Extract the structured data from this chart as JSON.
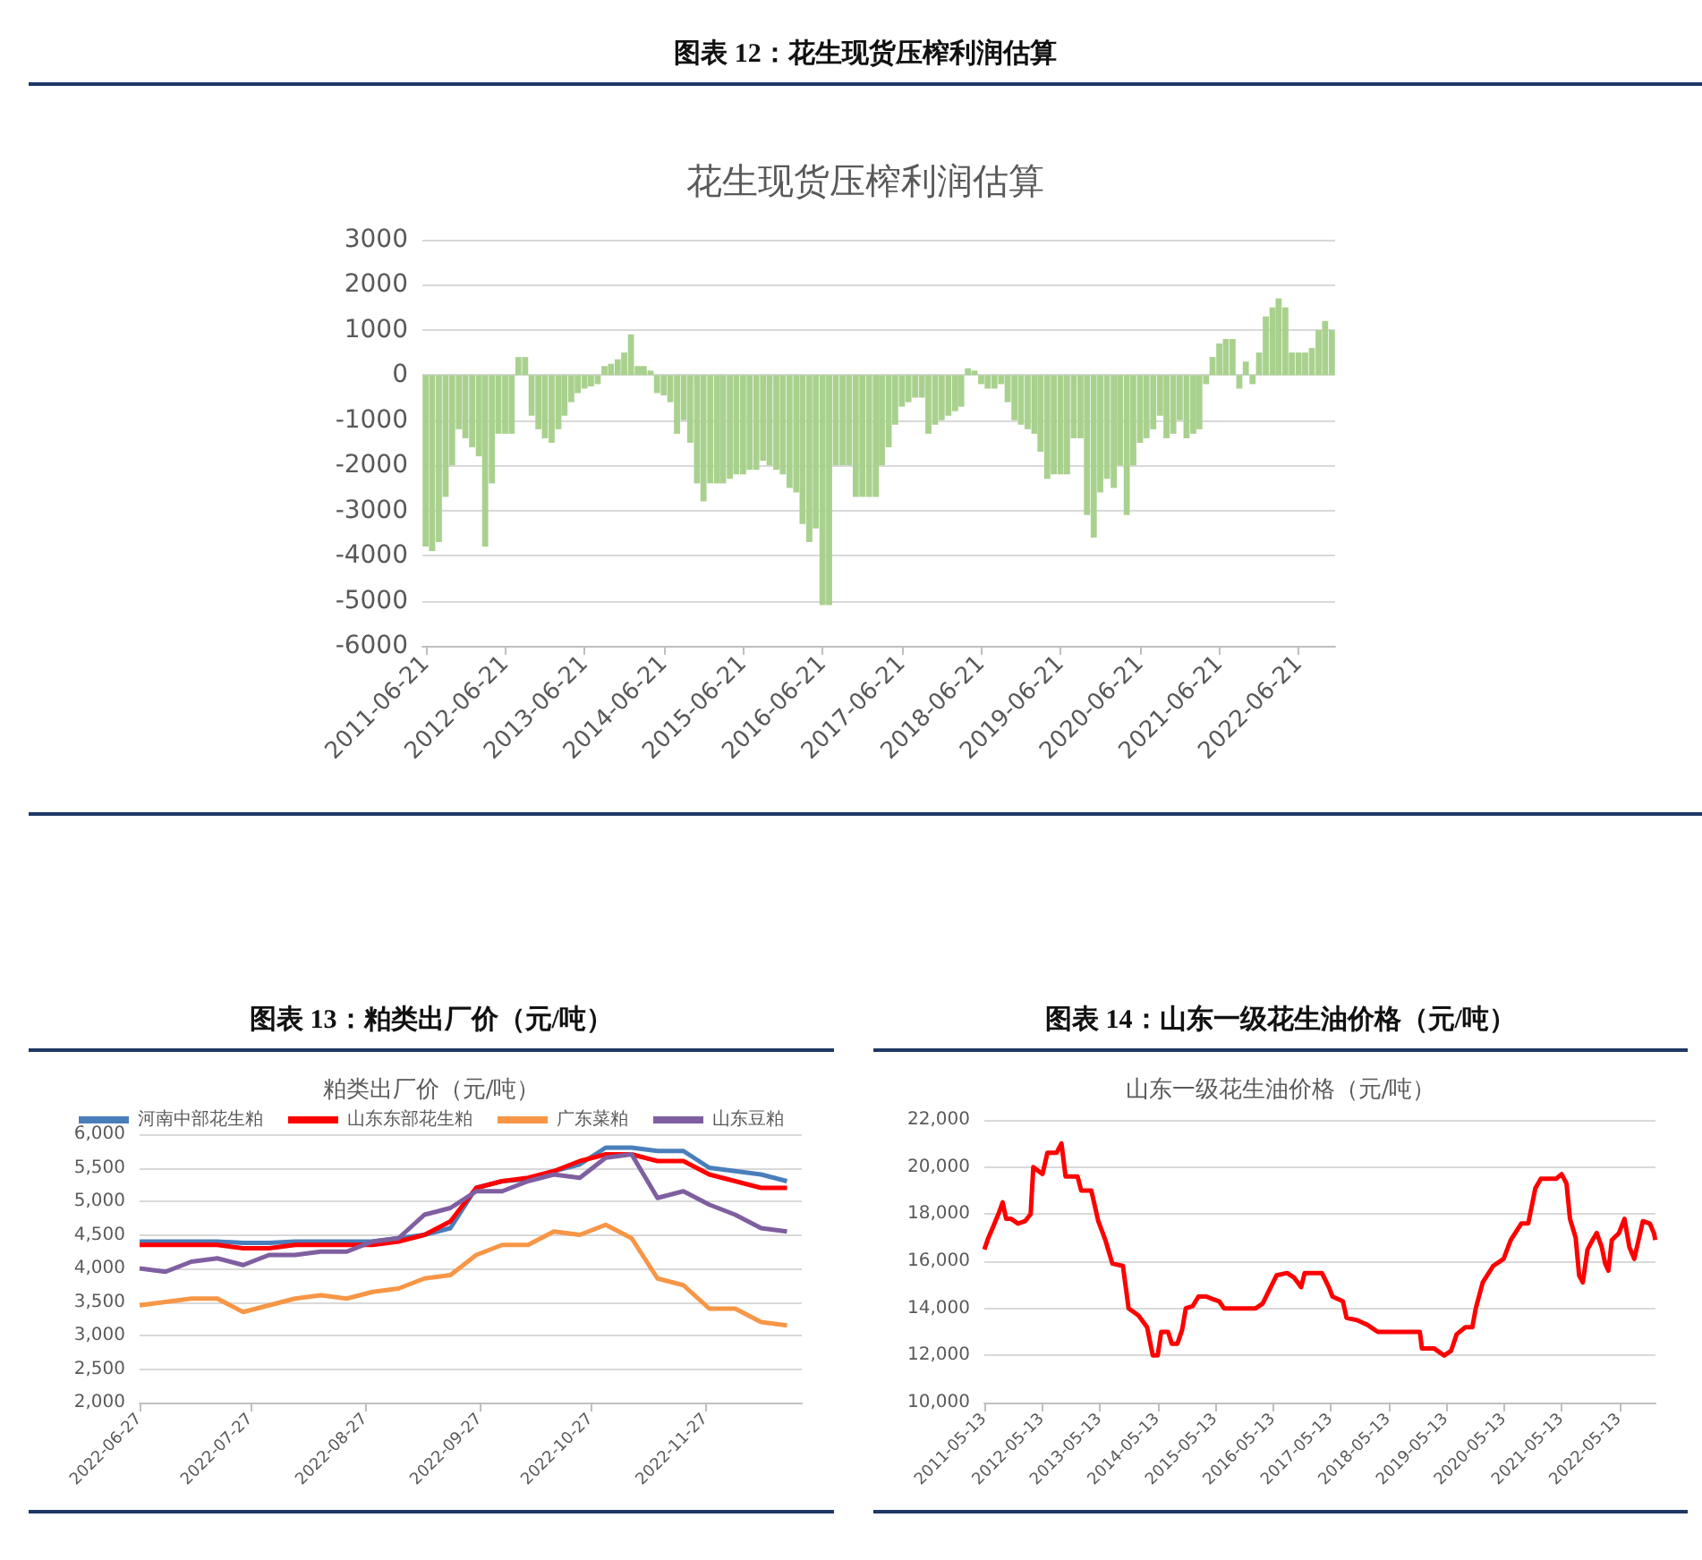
{
  "chart_data": [
    {
      "type": "bar",
      "title": "图表 12：花生现货压榨利润估算",
      "subtitle": "花生现货压榨利润估算",
      "x": [
        "2011-06-21",
        "2011-07-21",
        "2011-08-21",
        "2011-09-21",
        "2011-10-21",
        "2011-11-21",
        "2011-12-21",
        "2012-01-21",
        "2012-02-21",
        "2012-03-21",
        "2012-04-21",
        "2012-05-21",
        "2012-06-21",
        "2012-07-21",
        "2012-08-21",
        "2012-09-21",
        "2012-10-21",
        "2012-11-21",
        "2012-12-21",
        "2013-01-21",
        "2013-02-21",
        "2013-03-21",
        "2013-04-21",
        "2013-05-21",
        "2013-06-21",
        "2013-07-21",
        "2013-08-21",
        "2013-09-21",
        "2013-10-21",
        "2013-11-21",
        "2013-12-21",
        "2014-01-21",
        "2014-02-21",
        "2014-03-21",
        "2014-04-21",
        "2014-05-21",
        "2014-06-21",
        "2014-07-21",
        "2014-08-21",
        "2014-09-21",
        "2014-10-21",
        "2014-11-21",
        "2014-12-21",
        "2015-01-21",
        "2015-02-21",
        "2015-03-21",
        "2015-04-21",
        "2015-05-21",
        "2015-06-21",
        "2015-07-21",
        "2015-08-21",
        "2015-09-21",
        "2015-10-21",
        "2015-11-21",
        "2015-12-21",
        "2016-01-21",
        "2016-02-21",
        "2016-03-21",
        "2016-04-21",
        "2016-05-21",
        "2016-06-21",
        "2016-07-21",
        "2016-08-21",
        "2016-09-21",
        "2016-10-21",
        "2016-11-21",
        "2016-12-21",
        "2017-01-21",
        "2017-02-21",
        "2017-03-21",
        "2017-04-21",
        "2017-05-21",
        "2017-06-21",
        "2017-07-21",
        "2017-08-21",
        "2017-09-21",
        "2017-10-21",
        "2017-11-21",
        "2017-12-21",
        "2018-01-21",
        "2018-02-21",
        "2018-03-21",
        "2018-04-21",
        "2018-05-21",
        "2018-06-21",
        "2018-07-21",
        "2018-08-21",
        "2018-09-21",
        "2018-10-21",
        "2018-11-21",
        "2018-12-21",
        "2019-01-21",
        "2019-02-21",
        "2019-03-21",
        "2019-04-21",
        "2019-05-21",
        "2019-06-21",
        "2019-07-21",
        "2019-08-21",
        "2019-09-21",
        "2019-10-21",
        "2019-11-21",
        "2019-12-21",
        "2020-01-21",
        "2020-02-21",
        "2020-03-21",
        "2020-04-21",
        "2020-05-21",
        "2020-06-21",
        "2020-07-21",
        "2020-08-21",
        "2020-09-21",
        "2020-10-21",
        "2020-11-21",
        "2020-12-21",
        "2021-01-21",
        "2021-02-21",
        "2021-03-21",
        "2021-04-21",
        "2021-05-21",
        "2021-06-21",
        "2021-07-21",
        "2021-08-21",
        "2021-09-21",
        "2021-10-21",
        "2021-11-21",
        "2021-12-21",
        "2022-01-21",
        "2022-02-21",
        "2022-03-21",
        "2022-04-21",
        "2022-05-21",
        "2022-06-21",
        "2022-07-21",
        "2022-08-21",
        "2022-09-21",
        "2022-10-21",
        "2022-11-21"
      ],
      "series": [
        {
          "color": "#a9d18e",
          "values": [
            -3800,
            -3900,
            -3700,
            -2700,
            -2000,
            -1200,
            -1400,
            -1600,
            -1800,
            -3800,
            -2400,
            -1300,
            -1300,
            -1300,
            400,
            400,
            -900,
            -1200,
            -1400,
            -1500,
            -1200,
            -900,
            -600,
            -400,
            -300,
            -250,
            -200,
            200,
            250,
            350,
            500,
            900,
            200,
            200,
            100,
            -400,
            -450,
            -600,
            -1300,
            -1000,
            -1500,
            -2400,
            -2800,
            -2400,
            -2400,
            -2400,
            -2300,
            -2200,
            -2200,
            -2100,
            -2100,
            -1900,
            -2000,
            -2100,
            -2200,
            -2500,
            -2600,
            -3300,
            -3700,
            -3400,
            -5100,
            -5100,
            -2000,
            -2000,
            -2000,
            -2700,
            -2700,
            -2700,
            -2700,
            -2000,
            -1600,
            -1100,
            -700,
            -600,
            -500,
            -500,
            -1300,
            -1100,
            -1000,
            -900,
            -800,
            -700,
            150,
            100,
            -200,
            -300,
            -300,
            -200,
            -600,
            -1000,
            -1100,
            -1200,
            -1300,
            -1700,
            -2300,
            -2200,
            -2200,
            -2200,
            -1400,
            -1400,
            -3100,
            -3600,
            -2600,
            -2300,
            -2500,
            -2000,
            -3100,
            -2000,
            -1500,
            -1400,
            -1200,
            -900,
            -1400,
            -1300,
            -1000,
            -1400,
            -1300,
            -1200,
            -200,
            400,
            700,
            800,
            800,
            -300,
            300,
            -200,
            500,
            1300,
            1500,
            1700,
            1500,
            500,
            500,
            500,
            600,
            1000,
            1200,
            1000
          ]
        }
      ],
      "xlim": [
        "2011-06-06",
        "2022-12-06"
      ],
      "xticks": [
        "2011-06-21",
        "2012-06-21",
        "2013-06-21",
        "2014-06-21",
        "2015-06-21",
        "2016-06-21",
        "2017-06-21",
        "2018-06-21",
        "2019-06-21",
        "2020-06-21",
        "2021-06-21",
        "2022-06-21"
      ],
      "ylim": [
        -6000,
        3000
      ],
      "yticks": [
        -6000,
        -5000,
        -4000,
        -3000,
        -2000,
        -1000,
        0,
        1000,
        2000,
        3000
      ],
      "grid": "y"
    },
    {
      "type": "line",
      "title": "图表 13：粕类出厂价（元/吨）",
      "subtitle": "粕类出厂价（元/吨）",
      "x": [
        "2022-06-27",
        "2022-07-04",
        "2022-07-11",
        "2022-07-18",
        "2022-07-25",
        "2022-08-01",
        "2022-08-08",
        "2022-08-15",
        "2022-08-22",
        "2022-08-29",
        "2022-09-05",
        "2022-09-12",
        "2022-09-19",
        "2022-09-26",
        "2022-10-03",
        "2022-10-10",
        "2022-10-17",
        "2022-10-24",
        "2022-10-31",
        "2022-11-07",
        "2022-11-14",
        "2022-11-21",
        "2022-11-28",
        "2022-12-05",
        "2022-12-12",
        "2022-12-19"
      ],
      "series": [
        {
          "name": "河南中部花生粕",
          "color": "#4a7ebb",
          "values": [
            4400,
            4400,
            4400,
            4400,
            4380,
            4380,
            4400,
            4400,
            4400,
            4400,
            4450,
            4500,
            4600,
            5200,
            5300,
            5330,
            5450,
            5550,
            5800,
            5800,
            5750,
            5750,
            5500,
            5450,
            5400,
            5300
          ]
        },
        {
          "name": "山东东部花生粕",
          "color": "#ff0000",
          "values": [
            4350,
            4350,
            4350,
            4350,
            4300,
            4300,
            4350,
            4350,
            4350,
            4350,
            4400,
            4500,
            4700,
            5200,
            5300,
            5350,
            5450,
            5600,
            5700,
            5700,
            5600,
            5600,
            5400,
            5300,
            5200,
            5200
          ]
        },
        {
          "name": "广东菜粕",
          "color": "#f79646",
          "values": [
            3450,
            3500,
            3550,
            3550,
            3350,
            3450,
            3550,
            3600,
            3550,
            3650,
            3700,
            3850,
            3900,
            4200,
            4350,
            4350,
            4550,
            4500,
            4650,
            4450,
            3850,
            3750,
            3400,
            3400,
            3200,
            3150
          ]
        },
        {
          "name": "山东豆粕",
          "color": "#7f5fa0",
          "values": [
            4000,
            3950,
            4100,
            4150,
            4050,
            4200,
            4200,
            4250,
            4250,
            4400,
            4450,
            4800,
            4900,
            5150,
            5150,
            5300,
            5400,
            5350,
            5650,
            5700,
            5050,
            5150,
            4950,
            4800,
            4600,
            4550
          ]
        }
      ],
      "xlim": [
        "2022-06-27",
        "2022-12-23"
      ],
      "xticks": [
        "2022-06-27",
        "2022-07-27",
        "2022-08-27",
        "2022-09-27",
        "2022-10-27",
        "2022-11-27"
      ],
      "ylim": [
        2000,
        6000
      ],
      "yticks": [
        {
          "value": 2000,
          "label": "2,000"
        },
        {
          "value": 2500,
          "label": "2,500"
        },
        {
          "value": 3000,
          "label": "3,000"
        },
        {
          "value": 3500,
          "label": "3,500"
        },
        {
          "value": 4000,
          "label": "4,000"
        },
        {
          "value": 4500,
          "label": "4,500"
        },
        {
          "value": 5000,
          "label": "5,000"
        },
        {
          "value": 5500,
          "label": "5,500"
        },
        {
          "value": 6000,
          "label": "6,000"
        }
      ],
      "grid": "y",
      "legend": "top",
      "marker": "none",
      "line_style": "solid"
    },
    {
      "type": "line",
      "title": "图表 14：山东一级花生油价格（元/吨）",
      "subtitle": "山东一级花生油价格（元/吨）",
      "x": [
        "2011-05-13",
        "2011-06-08",
        "2011-07-10",
        "2011-08-10",
        "2011-09-06",
        "2011-09-28",
        "2011-10-29",
        "2011-12-12",
        "2012-01-26",
        "2012-03-01",
        "2012-03-18",
        "2012-05-15",
        "2012-06-15",
        "2012-08-12",
        "2012-09-12",
        "2012-10-08",
        "2012-12-23",
        "2013-01-15",
        "2013-03-20",
        "2013-05-03",
        "2013-06-17",
        "2013-07-31",
        "2013-10-06",
        "2013-11-11",
        "2014-01-12",
        "2014-03-08",
        "2014-04-13",
        "2014-05-14",
        "2014-06-05",
        "2014-07-19",
        "2014-08-11",
        "2014-09-16",
        "2014-10-16",
        "2014-11-08",
        "2014-12-22",
        "2015-01-27",
        "2015-03-19",
        "2015-04-24",
        "2015-06-07",
        "2015-07-08",
        "2016-01-24",
        "2016-03-08",
        "2016-04-21",
        "2016-06-04",
        "2016-08-10",
        "2016-09-24",
        "2016-11-07",
        "2016-11-29",
        "2017-03-18",
        "2017-05-01",
        "2017-05-24",
        "2017-07-29",
        "2017-08-21",
        "2017-10-26",
        "2017-12-31",
        "2018-03-07",
        "2018-09-23",
        "2018-11-28",
        "2018-12-11",
        "2019-02-25",
        "2019-05-01",
        "2019-06-14",
        "2019-07-19",
        "2019-09-12",
        "2019-10-26",
        "2019-11-17",
        "2019-12-31",
        "2020-03-06",
        "2020-05-11",
        "2020-06-25",
        "2020-08-31",
        "2020-10-14",
        "2020-11-28",
        "2021-01-02",
        "2021-04-08",
        "2021-05-13",
        "2021-06-13",
        "2021-07-05",
        "2021-08-10",
        "2021-09-01",
        "2021-09-24",
        "2021-10-24",
        "2021-11-25",
        "2021-12-21",
        "2022-01-22",
        "2022-02-13",
        "2022-03-05",
        "2022-03-27",
        "2022-05-11",
        "2022-06-15",
        "2022-07-16",
        "2022-08-16",
        "2022-09-12",
        "2022-10-09",
        "2022-11-22",
        "2022-12-18",
        "2022-12-27"
      ],
      "series": [
        {
          "color": "#ff0000",
          "values": [
            16500,
            17000,
            17500,
            18000,
            18500,
            17800,
            17800,
            17600,
            17700,
            18000,
            20000,
            19700,
            20600,
            20600,
            21000,
            19600,
            19600,
            19000,
            19000,
            17700,
            16900,
            15900,
            15800,
            14000,
            13700,
            13200,
            12000,
            12000,
            13000,
            13000,
            12500,
            12500,
            13100,
            14000,
            14100,
            14500,
            14500,
            14400,
            14300,
            14000,
            14000,
            14200,
            14800,
            15400,
            15500,
            15300,
            14900,
            15500,
            15500,
            14900,
            14500,
            14300,
            13600,
            13500,
            13300,
            13000,
            13000,
            13000,
            12300,
            12300,
            12000,
            12200,
            12900,
            13200,
            13200,
            14000,
            15100,
            15800,
            16100,
            16900,
            17600,
            17600,
            19100,
            19500,
            19500,
            19700,
            19300,
            17800,
            17000,
            15400,
            15100,
            16500,
            16900,
            17200,
            16600,
            15900,
            15600,
            16900,
            17200,
            17800,
            16600,
            16100,
            16900,
            17700,
            17600,
            17200,
            16900
          ]
        }
      ],
      "xlim": [
        "2011-05-13",
        "2022-12-28"
      ],
      "xticks": [
        "2011-05-13",
        "2012-05-13",
        "2013-05-13",
        "2014-05-13",
        "2015-05-13",
        "2016-05-13",
        "2017-05-13",
        "2018-05-13",
        "2019-05-13",
        "2020-05-13",
        "2021-05-13",
        "2022-05-13"
      ],
      "ylim": [
        10000,
        22000
      ],
      "yticks": [
        {
          "value": 10000,
          "label": "10,000"
        },
        {
          "value": 12000,
          "label": "12,000"
        },
        {
          "value": 14000,
          "label": "14,000"
        },
        {
          "value": 16000,
          "label": "16,000"
        },
        {
          "value": 18000,
          "label": "18,000"
        },
        {
          "value": 20000,
          "label": "20,000"
        },
        {
          "value": 22000,
          "label": "22,000"
        }
      ],
      "grid": "y",
      "marker": "none",
      "line_style": "solid"
    }
  ]
}
